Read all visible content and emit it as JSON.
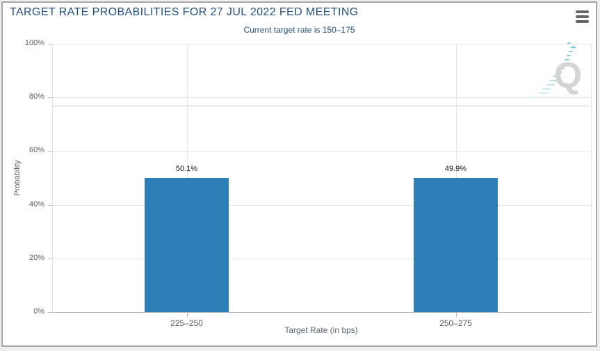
{
  "header": {
    "title": "TARGET RATE PROBABILITIES FOR 27 JUL 2022 FED MEETING",
    "subtitle": "Current target rate is 150–175",
    "context_menu_icon": "hamburger-menu-icon"
  },
  "colors": {
    "bar": "#2d7fb8",
    "title_text": "#234f82",
    "subtitle_text": "#234f82",
    "axis_label_text": "#58595b",
    "axis_title_text": "#5b6670",
    "gridline": "#e4e4e4",
    "axis_line": "#b5b5b5",
    "chart_background": "#ffffff",
    "page_background": "#efefef",
    "watermark_gray": "#d4d4d4",
    "watermark_blue": "#7ecfeb"
  },
  "watermark": {
    "letter": "Q"
  },
  "chart_data": {
    "type": "bar",
    "title": "TARGET RATE PROBABILITIES FOR 27 JUL 2022 FED MEETING",
    "subtitle": "Current target rate is 150–175",
    "categories": [
      "225–250",
      "250–275"
    ],
    "values": [
      50.1,
      49.9
    ],
    "value_labels": [
      "50.1%",
      "49.9%"
    ],
    "xlabel": "Target Rate (in bps)",
    "ylabel": "Probability",
    "ylim": [
      0,
      100
    ],
    "yticks": [
      0,
      20,
      40,
      60,
      80,
      100
    ],
    "ytick_labels": [
      "0%",
      "20%",
      "40%",
      "60%",
      "80%",
      "100%"
    ],
    "grid": true,
    "extra_line_pct": 77,
    "legend": "none"
  }
}
